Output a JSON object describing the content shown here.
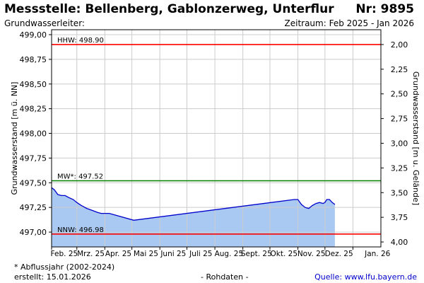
{
  "header": {
    "title": "Messstelle: Bellenberg, Gablonzerweg, Unterflur",
    "nr": "Nr: 9895",
    "aquifer": "Grundwasserleiter:",
    "period": "Zeitraum: Feb 2025 - Jan 2026"
  },
  "footer": {
    "note": "* Abflussjahr (2002-2024)",
    "created": "erstellt:  15.01.2026",
    "raw": "- Rohdaten -",
    "source": "Quelle: www.lfu.bayern.de"
  },
  "colors": {
    "hhw": "#ff0000",
    "mw": "#008000",
    "nnw": "#ff0000",
    "line": "#0000cc",
    "fill": "#a9c9f2",
    "grid": "#cccccc"
  },
  "chart_data": {
    "type": "area",
    "ylabel": "Grundwasserstand [m ü. NN]",
    "ylabel_right": "Grundwasserstand [m u. Gelände]",
    "ylim": [
      496.85,
      499.05
    ],
    "yticks": [
      "497,00",
      "497,25",
      "497,50",
      "497,75",
      "498,00",
      "498,25",
      "498,50",
      "498,75",
      "499,00"
    ],
    "ytick_values": [
      497.0,
      497.25,
      497.5,
      497.75,
      498.0,
      498.25,
      498.5,
      498.75,
      499.0
    ],
    "yticks_right": [
      "2,00",
      "2,25",
      "2,50",
      "2,75",
      "3,00",
      "3,25",
      "3,50",
      "3,75",
      "4,00"
    ],
    "ytick_right_values": [
      2.0,
      2.25,
      2.5,
      2.75,
      3.0,
      3.25,
      3.5,
      3.75,
      4.0
    ],
    "ground_level": 500.9,
    "xlim": [
      "2025-02-01",
      "2026-01-31"
    ],
    "xticks": [
      "Feb. 25",
      "Mrz. 25",
      "Apr. 25",
      "Mai 25",
      "Juni 25",
      "Juli 25",
      "Aug. 25",
      "Sept. 25",
      "Okt. 25",
      "Nov. 25",
      "Dez. 25",
      "Jan. 26"
    ],
    "xtick_dates": [
      "2025-02-01",
      "2025-03-01",
      "2025-04-01",
      "2025-05-01",
      "2025-06-01",
      "2025-07-01",
      "2025-08-01",
      "2025-09-01",
      "2025-10-01",
      "2025-11-01",
      "2025-12-01",
      "2026-01-01"
    ],
    "reference_lines": [
      {
        "label": "HHW: 498.90",
        "value": 498.9,
        "color": "#ff0000"
      },
      {
        "label": "MW*: 497.52",
        "value": 497.52,
        "color": "#008000"
      },
      {
        "label": "NNW: 496.98",
        "value": 496.98,
        "color": "#ff0000"
      }
    ],
    "series": [
      {
        "x": [
          "2025-02-01",
          "2025-02-04",
          "2025-02-08",
          "2025-02-12",
          "2025-02-16",
          "2025-02-20",
          "2025-02-25",
          "2025-03-01",
          "2025-03-06",
          "2025-03-12",
          "2025-03-18",
          "2025-03-24",
          "2025-03-28",
          "2025-04-02",
          "2025-04-06",
          "2025-05-03",
          "2025-10-28",
          "2025-11-01",
          "2025-11-05",
          "2025-11-09",
          "2025-11-13",
          "2025-11-17",
          "2025-11-21",
          "2025-11-25",
          "2025-11-29",
          "2025-12-01",
          "2025-12-03",
          "2025-12-06",
          "2025-12-09",
          "2025-12-12"
        ],
        "values": [
          497.45,
          497.43,
          497.38,
          497.37,
          497.37,
          497.35,
          497.33,
          497.3,
          497.27,
          497.24,
          497.22,
          497.2,
          497.19,
          497.19,
          497.19,
          497.12,
          497.33,
          497.33,
          497.28,
          497.25,
          497.24,
          497.27,
          497.29,
          497.3,
          497.29,
          497.3,
          497.33,
          497.33,
          497.3,
          497.28
        ]
      }
    ]
  }
}
